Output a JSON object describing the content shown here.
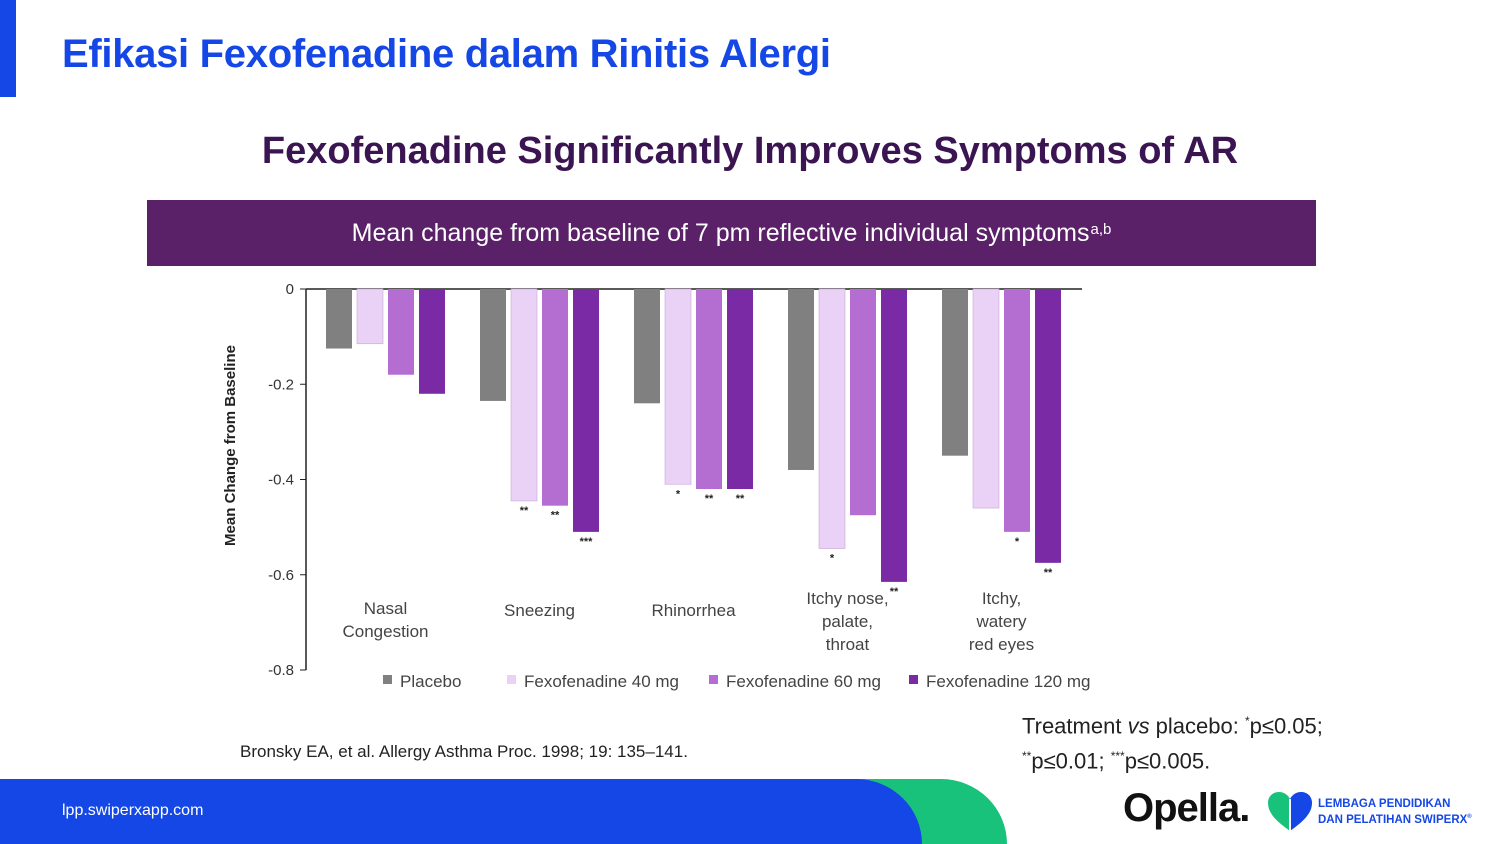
{
  "slide": {
    "title": "Efikasi Fexofenadine dalam Rinitis Alergi",
    "heading": "Fexofenadine Significantly Improves Symptoms of AR",
    "banner_text": "Mean change from baseline of 7 pm reflective individual symptoms",
    "banner_superscript": "a,b",
    "citation": "Bronsky EA, et al. Allergy Asthma Proc. 1998; 19: 135–141.",
    "significance": {
      "line1_prefix": "Treatment ",
      "line1_italic": "vs",
      "line1_mid": " placebo: ",
      "star1": "*",
      "p1": "p≤0.05;",
      "star2": "**",
      "p2": "p≤0.01; ",
      "star3": "***",
      "p3": "p≤0.005."
    }
  },
  "footer": {
    "url": "lpp.swiperxapp.com",
    "brand": "Opella.",
    "partner_line1": "LEMBAGA PENDIDIKAN",
    "partner_line2": "DAN PELATIHAN SWIPERX",
    "partner_mark": "®",
    "colors": {
      "blue": "#1447e6",
      "green": "#19c27a"
    }
  },
  "chart_data": {
    "type": "bar",
    "ylabel": "Mean Change from Baseline",
    "ylim": [
      -0.8,
      0
    ],
    "yticks": [
      0,
      -0.2,
      -0.4,
      -0.6,
      -0.8
    ],
    "ytick_labels": [
      "0",
      "-0.2",
      "-0.4",
      "-0.6",
      "-0.8"
    ],
    "categories": [
      [
        "Nasal",
        "Congestion"
      ],
      [
        "Sneezing"
      ],
      [
        "Rhinorrhea"
      ],
      [
        "Itchy nose,",
        "palate,",
        "throat"
      ],
      [
        "Itchy,",
        "watery",
        "red eyes"
      ]
    ],
    "legend_position": "bottom",
    "series": [
      {
        "name": "Placebo",
        "color": "#808080",
        "values": [
          -0.125,
          -0.235,
          -0.24,
          -0.38,
          -0.35
        ],
        "significance": [
          "",
          "",
          "",
          "",
          ""
        ]
      },
      {
        "name": "Fexofenadine 40 mg",
        "color": "#ead2f6",
        "values": [
          -0.115,
          -0.445,
          -0.41,
          -0.545,
          -0.46
        ],
        "significance": [
          "",
          "**",
          "*",
          "*",
          ""
        ]
      },
      {
        "name": "Fexofenadine 60 mg",
        "color": "#b46ed2",
        "values": [
          -0.18,
          -0.455,
          -0.42,
          -0.475,
          -0.51
        ],
        "significance": [
          "",
          "**",
          "**",
          "",
          "*"
        ]
      },
      {
        "name": "Fexofenadine 120 mg",
        "color": "#7a2aa4",
        "values": [
          -0.22,
          -0.51,
          -0.42,
          -0.615,
          -0.575
        ],
        "significance": [
          "",
          "***",
          "**",
          "**",
          "**"
        ]
      }
    ]
  }
}
